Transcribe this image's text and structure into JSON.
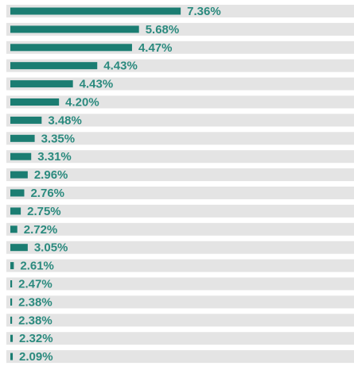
{
  "rows": [
    {
      "label": "7.36%",
      "bar": 49
    },
    {
      "label": "5.68%",
      "bar": 37
    },
    {
      "label": "4.47%",
      "bar": 35
    },
    {
      "label": "4.43%",
      "bar": 25
    },
    {
      "label": "4.43%",
      "bar": 18
    },
    {
      "label": "4.20%",
      "bar": 14
    },
    {
      "label": "3.48%",
      "bar": 9
    },
    {
      "label": "3.35%",
      "bar": 7
    },
    {
      "label": "3.31%",
      "bar": 6
    },
    {
      "label": "2.96%",
      "bar": 5
    },
    {
      "label": "2.76%",
      "bar": 4
    },
    {
      "label": "2.75%",
      "bar": 3
    },
    {
      "label": "2.72%",
      "bar": 2
    },
    {
      "label": "3.05%",
      "bar": 5
    },
    {
      "label": "2.61%",
      "bar": 1
    },
    {
      "label": "2.47%",
      "bar": 0.5
    },
    {
      "label": "2.38%",
      "bar": 0.5
    },
    {
      "label": "2.38%",
      "bar": 0.5
    },
    {
      "label": "2.32%",
      "bar": 0.7
    },
    {
      "label": "2.09%",
      "bar": 0.7
    }
  ]
}
